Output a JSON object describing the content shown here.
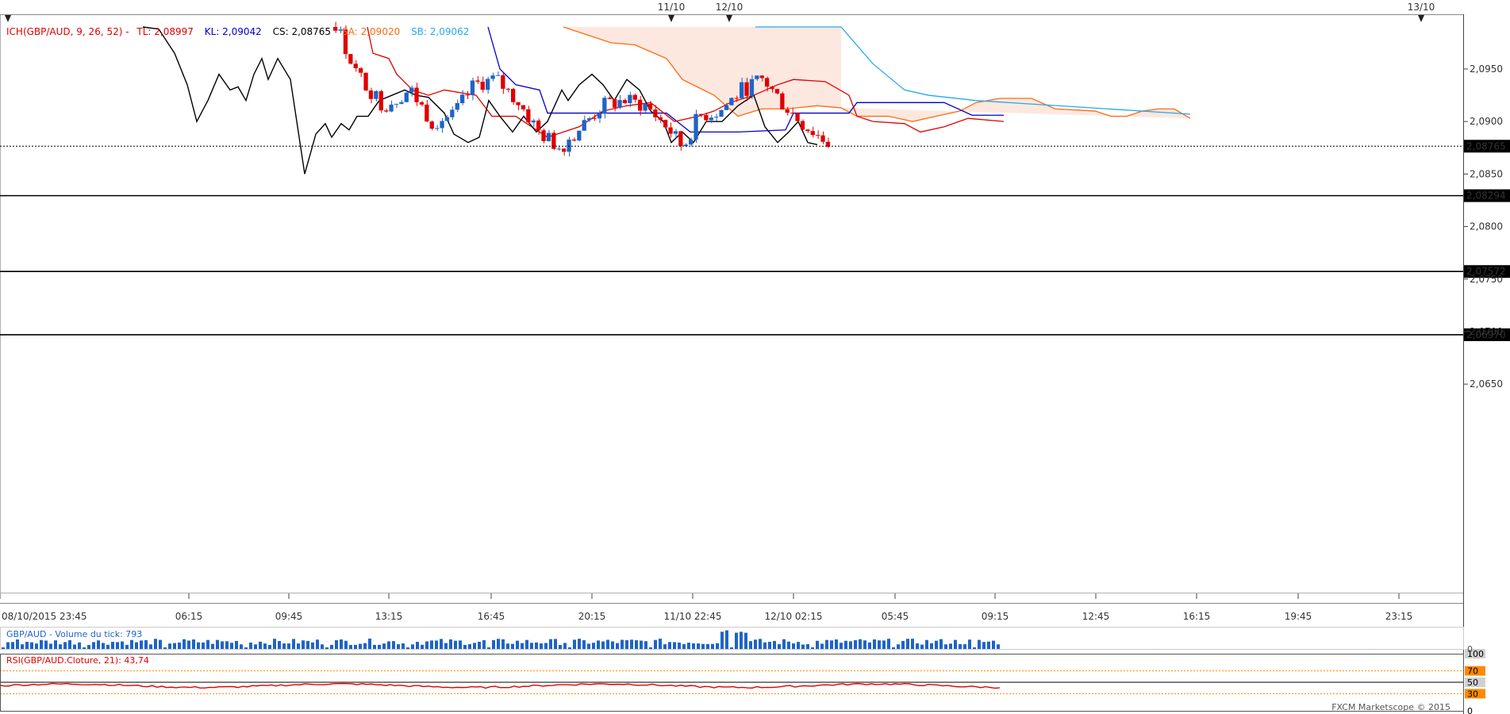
{
  "chart_data": {
    "type": "candlestick",
    "instrument": "GBP/AUD",
    "ylim": [
      2.06,
      2.099
    ],
    "price_ticks": [
      "2,0650",
      "2,0700",
      "2,0750",
      "2,0800",
      "2,0850",
      "2,0900",
      "2,0950"
    ],
    "time_ticks": [
      "08/10/2015 23:45",
      "06:15",
      "09:45",
      "13:15",
      "16:45",
      "20:15",
      "11/10 22:45",
      "12/10 02:15",
      "05:45",
      "09:15",
      "12:45",
      "16:15",
      "19:45",
      "23:15"
    ],
    "date_markers": [
      "11/10",
      "12/10",
      "13/10"
    ],
    "current_price": {
      "value": 2.08765,
      "label": "2,08765",
      "color": "#00cc00"
    },
    "horizontal_levels": [
      {
        "value": 2.08294,
        "label": "2,08294"
      },
      {
        "value": 2.07572,
        "label": "2,07572"
      },
      {
        "value": 2.0697,
        "label": "2,06970"
      }
    ],
    "ichimoku_legend": {
      "title": "ICH(GBP/AUD, 9, 26, 52) -",
      "tl": "TL: 2,08997",
      "kl": "KL: 2,09042",
      "cs": "CS: 2,08765",
      "sa": "SA: 2,09020",
      "sb": "SB: 2,09062"
    },
    "colors": {
      "up": "#1e64c8",
      "down": "#e00000",
      "tenkan": "#e00000",
      "kijun": "#0000cc",
      "chikou": "#000000",
      "senkou_a": "#ff6a10",
      "senkou_b": "#22aaee",
      "cloud": "#fde8e0"
    },
    "volume": {
      "label": "GBP/AUD - Volume du tick: 793",
      "zero_label": "0"
    },
    "rsi": {
      "label": "RSI(GBP/AUD.Cloture, 21): 43,74",
      "levels": [
        "100",
        "70",
        "50",
        "30",
        "0"
      ],
      "value": 43.74
    },
    "watermark": "FXCM Marketscope © 2015"
  }
}
